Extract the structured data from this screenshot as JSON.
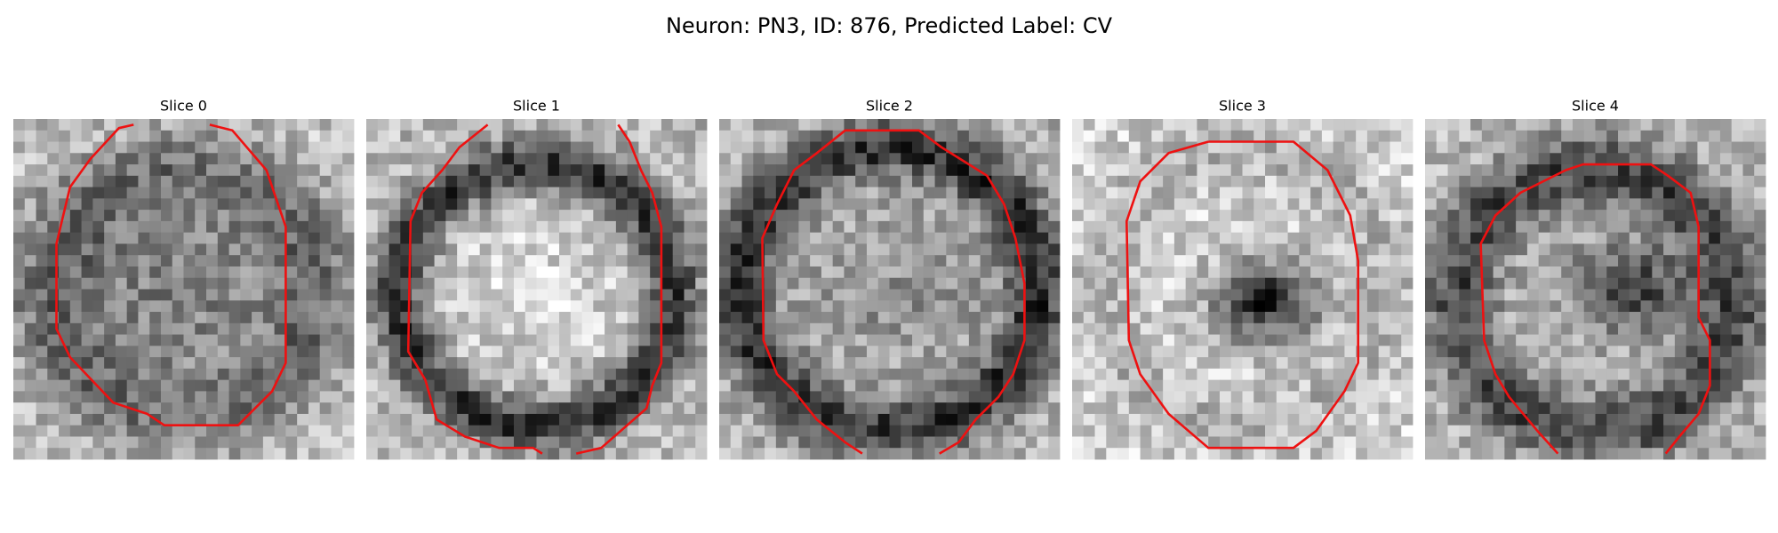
{
  "title": "Neuron: PN3, ID: 876, Predicted Label: CV",
  "panels": [
    {
      "title": "Slice 0"
    },
    {
      "title": "Slice 1"
    },
    {
      "title": "Slice 2"
    },
    {
      "title": "Slice 3"
    },
    {
      "title": "Slice 4"
    }
  ]
}
